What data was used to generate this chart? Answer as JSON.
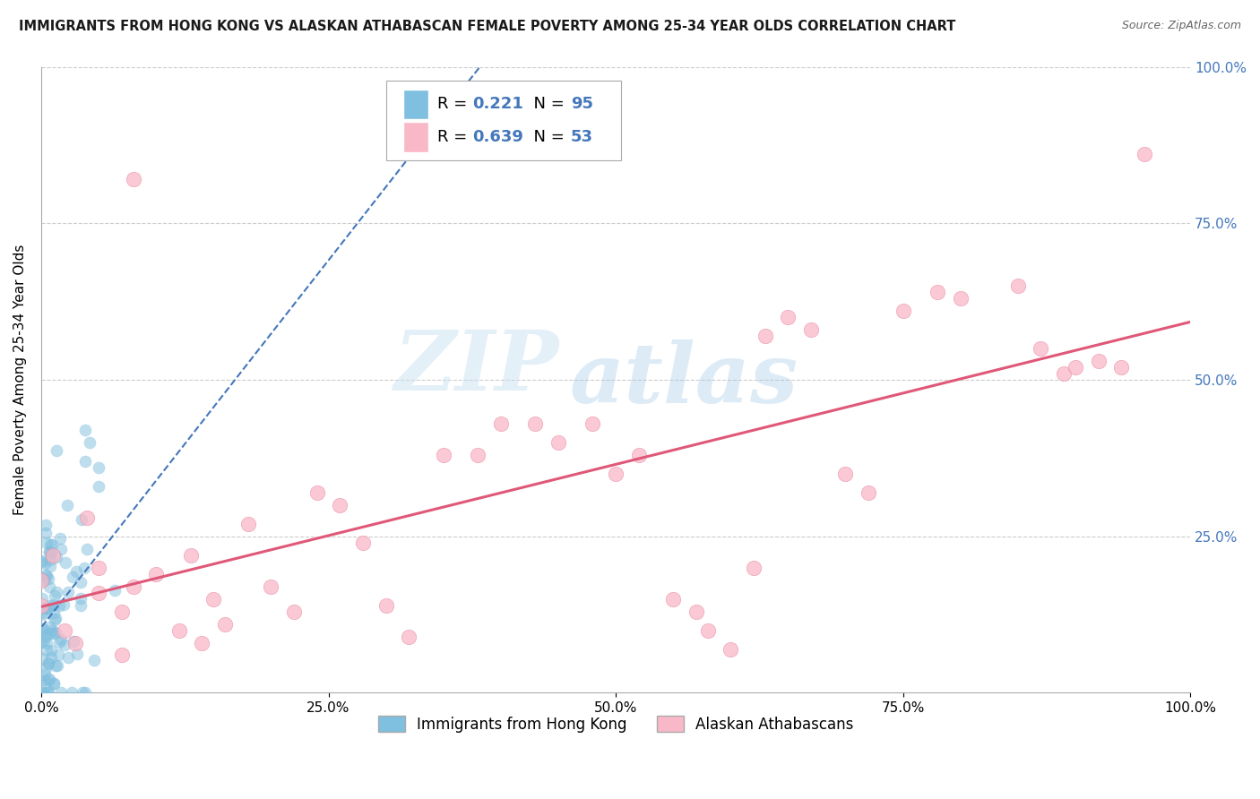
{
  "title": "IMMIGRANTS FROM HONG KONG VS ALASKAN ATHABASCAN FEMALE POVERTY AMONG 25-34 YEAR OLDS CORRELATION CHART",
  "source": "Source: ZipAtlas.com",
  "ylabel": "Female Poverty Among 25-34 Year Olds",
  "watermark_zip": "ZIP",
  "watermark_atlas": "atlas",
  "hk_color": "#7fbfdf",
  "hk_edge_color": "#5599cc",
  "hk_line_color": "#4477bb",
  "athabascan_color": "#f9b8c8",
  "athabascan_edge_color": "#e890a8",
  "athabascan_line_color": "#e05878",
  "background_color": "#ffffff",
  "grid_color": "#cccccc",
  "xlim": [
    0.0,
    1.0
  ],
  "ylim": [
    0.0,
    1.0
  ],
  "xticks": [
    0.0,
    0.25,
    0.5,
    0.75,
    1.0
  ],
  "yticks": [
    0.25,
    0.5,
    0.75,
    1.0
  ],
  "xticklabels": [
    "0.0%",
    "25.0%",
    "50.0%",
    "75.0%",
    "100.0%"
  ],
  "yticklabels_right": [
    "25.0%",
    "50.0%",
    "75.0%",
    "100.0%"
  ],
  "tick_color": "#4477bb",
  "hk_R": 0.221,
  "hk_N": 95,
  "athabascan_R": 0.639,
  "athabascan_N": 53,
  "legend_box_color": "#dddddd",
  "legend_R_color": "#4477bb",
  "legend_N_color": "#4477bb"
}
